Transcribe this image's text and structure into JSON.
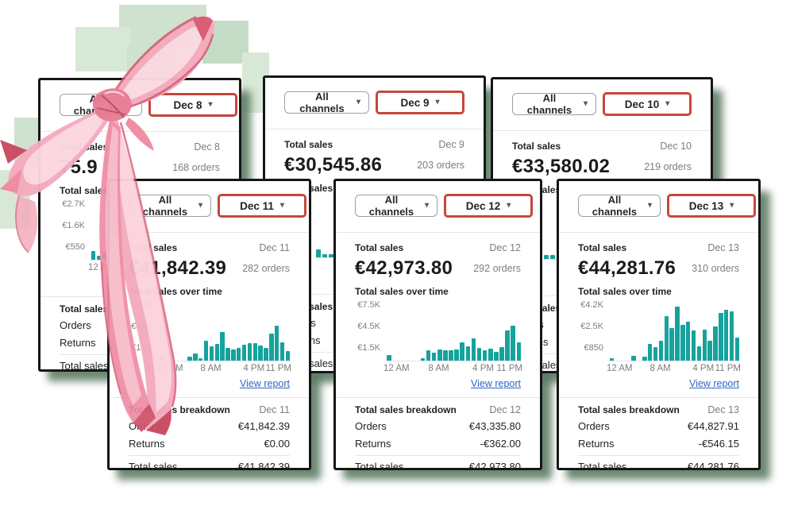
{
  "icons": {
    "caret": "▾"
  },
  "colors": {
    "bar_teal": "#16a29d",
    "date_button_border": "#c5473a",
    "link_blue": "#2e66c4",
    "card_background": "#ffffff",
    "shadow_green": "#5c7b63",
    "ribbon_pink": "#f4abbd"
  },
  "labels": {
    "channels": "All channels",
    "total_sales": "Total sales",
    "total_sales_over_time": "Total sales over time",
    "view_report": "View report",
    "breakdown_title": "Total sales breakdown",
    "orders_row": "Orders",
    "returns_row": "Returns",
    "total_row": "Total sales"
  },
  "cards": [
    {
      "date_button": "Dec 8",
      "date": "Dec 8",
      "orders": "168 orders",
      "total": "75.9",
      "breakdown": {
        "orders": "",
        "returns": "",
        "total": ""
      }
    },
    {
      "date_button": "Dec 9",
      "date": "Dec 9",
      "orders": "203 orders",
      "total": "€30,545.86",
      "breakdown": {
        "orders": "",
        "returns": "",
        "total": ""
      }
    },
    {
      "date_button": "Dec 10",
      "date": "Dec 10",
      "orders": "219 orders",
      "total": "€33,580.02",
      "breakdown": {
        "orders": "",
        "returns": "",
        "total": ""
      }
    },
    {
      "date_button": "Dec 11",
      "date": "Dec 11",
      "orders": "282 orders",
      "total": "€41,842.39",
      "breakdown": {
        "orders": "€41,842.39",
        "returns": "€0.00",
        "total": "€41,842.39"
      }
    },
    {
      "date_button": "Dec 12",
      "date": "Dec 12",
      "orders": "292 orders",
      "total": "€42,973.80",
      "breakdown": {
        "orders": "€43,335.80",
        "returns": "-€362.00",
        "total": "€42,973.80"
      }
    },
    {
      "date_button": "Dec 13",
      "date": "Dec 13",
      "orders": "310 orders",
      "total": "€44,281.76",
      "breakdown": {
        "orders": "€44,827.91",
        "returns": "-€546.15",
        "total": "€44,281.76"
      }
    }
  ],
  "chart_data": [
    {
      "card": "Dec 8",
      "type": "bar",
      "title": "Total sales over time",
      "yticks": [
        "€2.7K",
        "€1.6K",
        "€550"
      ],
      "xticks": [
        "12 AM",
        "8 AM",
        "4 PM",
        "11 PM"
      ],
      "ylim": [
        0,
        3000
      ],
      "values": [
        450,
        200,
        350,
        550,
        600,
        480,
        420,
        380,
        300,
        300,
        300,
        300,
        300,
        300,
        300,
        300,
        300,
        300,
        300,
        300,
        300,
        300,
        300,
        300
      ]
    },
    {
      "card": "Dec 9",
      "type": "bar",
      "title": "Total sales over time",
      "yticks": [
        "",
        "",
        ""
      ],
      "xticks": [
        "",
        "",
        "",
        ""
      ],
      "ylim": [
        0,
        3000
      ],
      "values": [
        400,
        150,
        150,
        500,
        450,
        300,
        300,
        300,
        300,
        300,
        300,
        300,
        300,
        300,
        300,
        300,
        300,
        300,
        300,
        300,
        300,
        300,
        300,
        300
      ]
    },
    {
      "card": "Dec 10",
      "type": "bar",
      "title": "Total sales over time",
      "yticks": [
        "",
        "",
        ""
      ],
      "xticks": [
        "",
        "",
        "",
        ""
      ],
      "ylim": [
        0,
        3000
      ],
      "values": [
        200,
        200,
        200,
        200,
        200,
        200,
        200,
        200,
        200,
        200,
        200,
        200,
        200,
        200,
        200,
        200,
        200,
        200,
        200,
        200,
        200,
        200,
        200,
        200
      ]
    },
    {
      "card": "Dec 11",
      "type": "bar",
      "title": "Total sales over time",
      "yticks": [
        "€7.5K",
        "€4.5K",
        "€1.5K"
      ],
      "xticks": [
        "12 AM",
        "8 AM",
        "4 PM",
        "11 PM"
      ],
      "ylim": [
        0,
        8300
      ],
      "values": [
        600,
        0,
        0,
        0,
        0,
        500,
        950,
        200,
        2700,
        2000,
        2300,
        3900,
        1700,
        1500,
        1700,
        2200,
        2400,
        2400,
        2100,
        1700,
        3700,
        4800,
        2500,
        1300
      ]
    },
    {
      "card": "Dec 12",
      "type": "bar",
      "title": "Total sales over time",
      "yticks": [
        "€7.5K",
        "€4.5K",
        "€1.5K"
      ],
      "xticks": [
        "12 AM",
        "8 AM",
        "4 PM",
        "11 PM"
      ],
      "ylim": [
        0,
        8300
      ],
      "values": [
        800,
        0,
        0,
        0,
        0,
        0,
        300,
        1400,
        1100,
        1500,
        1450,
        1400,
        1500,
        2500,
        2000,
        3100,
        1700,
        1400,
        1600,
        1250,
        1850,
        4200,
        4800,
        2500
      ]
    },
    {
      "card": "Dec 13",
      "type": "bar",
      "title": "Total sales over time",
      "yticks": [
        "€4.2K",
        "€2.5K",
        "€850"
      ],
      "xticks": [
        "12 AM",
        "8 AM",
        "4 PM",
        "11 PM"
      ],
      "ylim": [
        0,
        4600
      ],
      "values": [
        180,
        0,
        0,
        0,
        380,
        0,
        320,
        1300,
        1050,
        1500,
        3400,
        2500,
        4100,
        2700,
        2950,
        2300,
        1100,
        2350,
        1500,
        2600,
        3650,
        3850,
        3750,
        1750
      ]
    }
  ]
}
